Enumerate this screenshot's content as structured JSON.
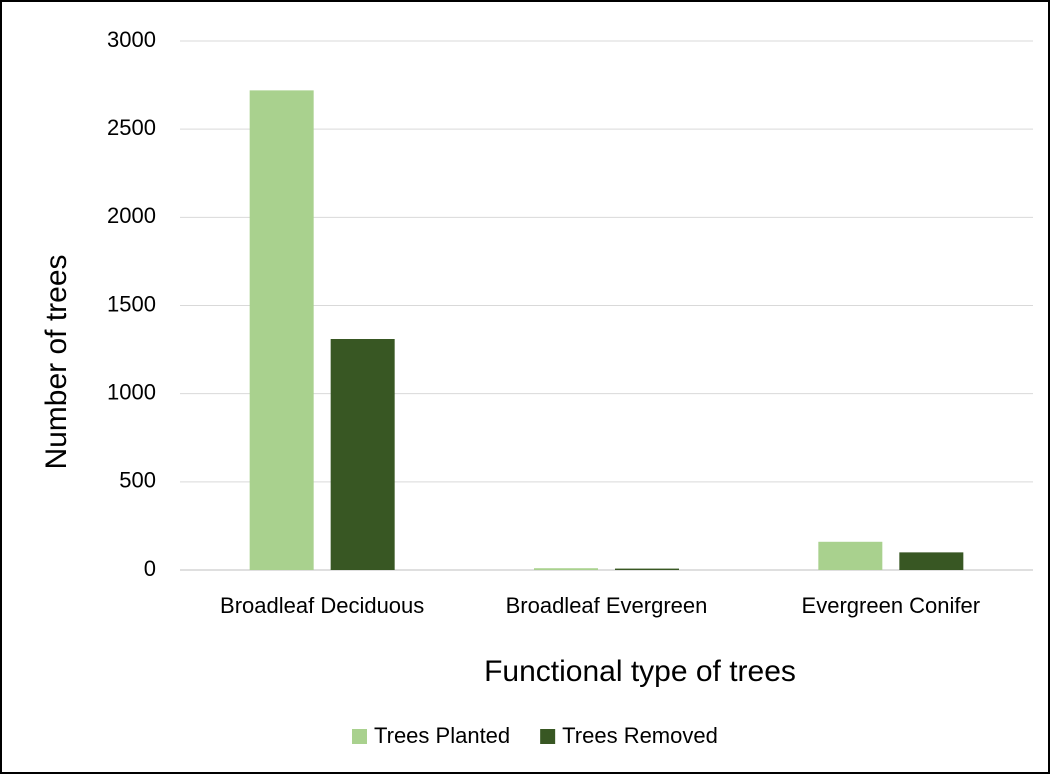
{
  "chart_data": {
    "type": "bar",
    "x_label": "Functional type of trees",
    "y_label": "Number of trees",
    "categories": [
      "Broadleaf Deciduous",
      "Broadleaf Evergreen",
      "Evergreen Conifer"
    ],
    "series": [
      {
        "name": "Trees Planted",
        "color": "#a9d18e",
        "values": [
          2720,
          10,
          160
        ]
      },
      {
        "name": "Trees Removed",
        "color": "#385723",
        "values": [
          1310,
          8,
          100
        ]
      }
    ],
    "ylim": [
      0,
      3000
    ],
    "yticks": [
      0,
      500,
      1000,
      1500,
      2000,
      2500,
      3000
    ],
    "grid": true,
    "legend": "bottom"
  }
}
